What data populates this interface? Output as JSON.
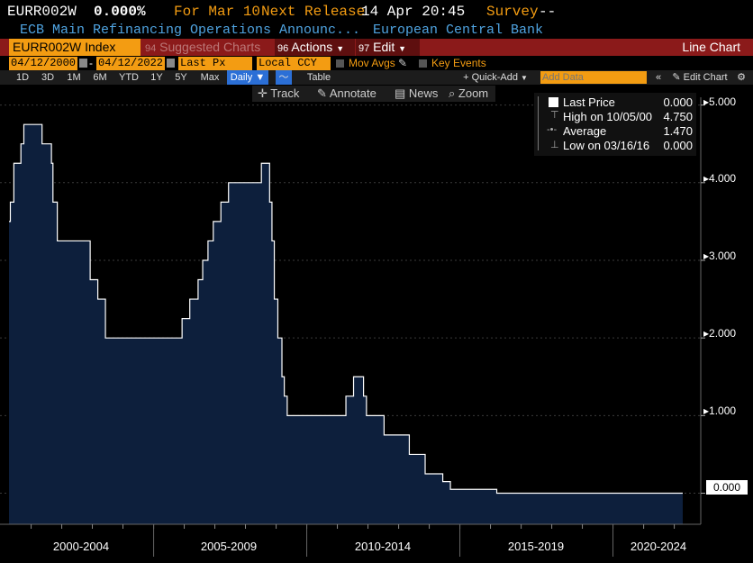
{
  "header": {
    "ticker": "EURR002W",
    "value": "0.000%",
    "for_label": "For Mar 10",
    "next_release_label": "Next Release",
    "next_release_time": "14 Apr 20:45",
    "survey_label": "Survey",
    "survey_value": "--",
    "description": "ECB Main Refinancing Operations Announc...",
    "source": "European Central Bank"
  },
  "toolbar": {
    "security": "EURR002W Index",
    "suggested_num": "94",
    "suggested": "Suggested Charts",
    "actions_num": "96",
    "actions": "Actions",
    "edit_num": "97",
    "edit": "Edit",
    "chart_type": "Line Chart"
  },
  "params": {
    "start_date": "04/12/2000",
    "end_date": "04/12/2022",
    "field": "Last Px",
    "currency": "Local CCY",
    "mov_avgs": "Mov Avgs",
    "key_events": "Key Events"
  },
  "ranges": {
    "items": [
      "1D",
      "3D",
      "1M",
      "6M",
      "YTD",
      "1Y",
      "5Y",
      "Max"
    ],
    "frequency": "Daily",
    "table": "Table",
    "quick_add": "Quick-Add",
    "add_data_placeholder": "Add Data",
    "edit_chart": "Edit Chart"
  },
  "tools": {
    "track": "Track",
    "annotate": "Annotate",
    "news": "News",
    "zoom": "Zoom"
  },
  "legend": {
    "last_price_label": "Last Price",
    "last_price_value": "0.000",
    "high_label": "High on 10/05/00",
    "high_value": "4.750",
    "average_label": "Average",
    "average_value": "1.470",
    "low_label": "Low on 03/16/16",
    "low_value": "0.000"
  },
  "colors": {
    "area_fill": "#0d1f3c",
    "line": "#ffffff",
    "orange": "#f39c12",
    "red_bar": "#8b1a1a",
    "blue_text": "#4fa3e0"
  },
  "chart_data": {
    "type": "area",
    "title": "",
    "xlabel": "",
    "ylabel": "",
    "ylim": [
      -0.4,
      5.1
    ],
    "y_ticks": [
      "5.000",
      "4.000",
      "3.000",
      "2.000",
      "1.000"
    ],
    "current_value_label": "0.000",
    "x_period_labels": [
      "2000-2004",
      "2005-2009",
      "2010-2014",
      "2015-2019",
      "2020-2024"
    ],
    "series": [
      {
        "x": [
          "2000-04-12",
          "2000-04-28",
          "2000-06-09",
          "2000-09-01",
          "2000-10-06",
          "2001-05-11",
          "2001-08-31",
          "2001-09-18",
          "2001-11-09",
          "2002-12-06",
          "2003-03-07",
          "2003-06-06",
          "2005-12-06",
          "2006-03-08",
          "2006-06-15",
          "2006-08-09",
          "2006-10-11",
          "2006-12-13",
          "2007-03-14",
          "2007-06-13",
          "2008-07-09",
          "2008-10-15",
          "2008-11-12",
          "2008-12-10",
          "2009-01-21",
          "2009-03-11",
          "2009-04-08",
          "2009-05-13",
          "2011-04-13",
          "2011-07-13",
          "2011-11-09",
          "2011-12-14",
          "2012-07-11",
          "2013-05-08",
          "2013-11-13",
          "2014-06-11",
          "2014-09-10",
          "2016-03-16",
          "2022-04-12"
        ],
        "y": [
          3.5,
          3.75,
          4.25,
          4.5,
          4.75,
          4.5,
          4.25,
          3.75,
          3.25,
          2.75,
          2.5,
          2.0,
          2.25,
          2.5,
          2.75,
          3.0,
          3.25,
          3.5,
          3.75,
          4.0,
          4.25,
          3.75,
          3.25,
          2.5,
          2.0,
          1.5,
          1.25,
          1.0,
          1.25,
          1.5,
          1.25,
          1.0,
          0.75,
          0.5,
          0.25,
          0.15,
          0.05,
          0.0,
          0.0
        ]
      }
    ]
  }
}
